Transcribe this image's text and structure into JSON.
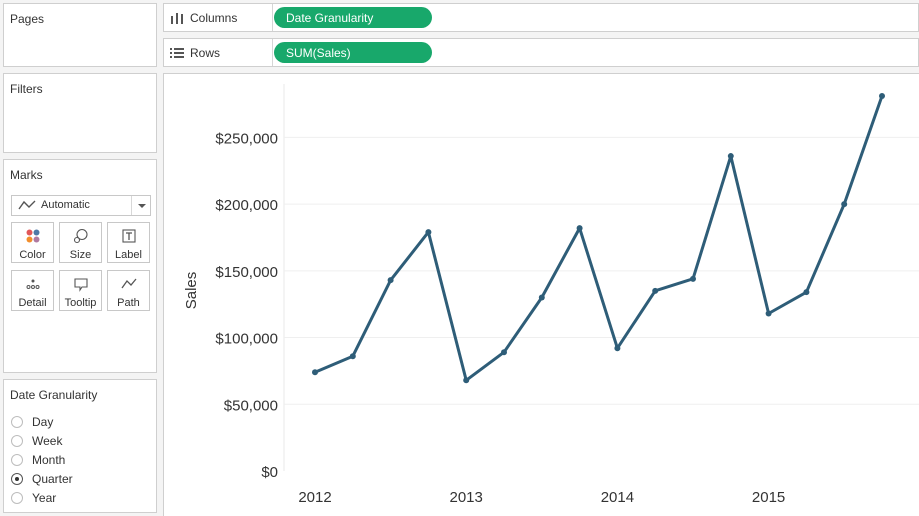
{
  "cards": {
    "pages_title": "Pages",
    "filters_title": "Filters",
    "marks_title": "Marks",
    "granularity_title": "Date Granularity"
  },
  "marks": {
    "type_label": "Automatic",
    "buttons": [
      {
        "label": "Color",
        "icon": "color-icon"
      },
      {
        "label": "Size",
        "icon": "size-icon"
      },
      {
        "label": "Label",
        "icon": "label-icon"
      },
      {
        "label": "Detail",
        "icon": "detail-icon"
      },
      {
        "label": "Tooltip",
        "icon": "tooltip-icon"
      },
      {
        "label": "Path",
        "icon": "path-icon"
      }
    ]
  },
  "granularity": {
    "options": [
      "Day",
      "Week",
      "Month",
      "Quarter",
      "Year"
    ],
    "selected": "Quarter"
  },
  "shelves": {
    "columns_label": "Columns",
    "columns_pill": "Date Granularity",
    "rows_label": "Rows",
    "rows_pill": "SUM(Sales)"
  },
  "colors": {
    "pill": "#18a86b",
    "line": "#2e5d78"
  },
  "chart_data": {
    "type": "line",
    "ylabel": "Sales",
    "xlabel": "",
    "ylim": [
      0,
      290000
    ],
    "yticks": [
      0,
      50000,
      100000,
      150000,
      200000,
      250000
    ],
    "ytick_labels": [
      "$0",
      "$50,000",
      "$100,000",
      "$150,000",
      "$200,000",
      "$250,000"
    ],
    "xtick_labels": [
      "2012",
      "2013",
      "2014",
      "2015"
    ],
    "grid": true,
    "series": [
      {
        "x": [
          "2012 Q1",
          "2012 Q2",
          "2012 Q3",
          "2012 Q4",
          "2013 Q1",
          "2013 Q2",
          "2013 Q3",
          "2013 Q4",
          "2014 Q1",
          "2014 Q2",
          "2014 Q3",
          "2014 Q4",
          "2015 Q1",
          "2015 Q2",
          "2015 Q3",
          "2015 Q4"
        ],
        "values": [
          74000,
          86000,
          143000,
          179000,
          68000,
          89000,
          130000,
          182000,
          92000,
          135000,
          144000,
          236000,
          118000,
          134000,
          200000,
          281000
        ]
      }
    ]
  }
}
